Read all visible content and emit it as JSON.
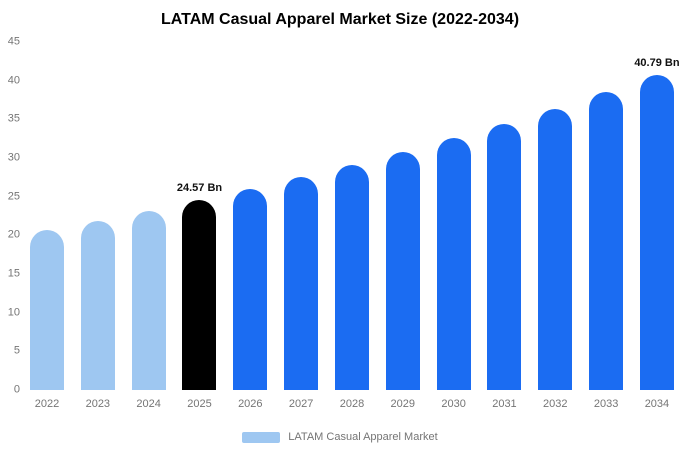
{
  "title": "LATAM Casual Apparel Market Size (2022-2034)",
  "legend": {
    "label": "LATAM Casual Apparel Market",
    "swatch_color": "#9ec7f1"
  },
  "colors": {
    "historical_bar": "#9ec7f1",
    "highlight_bar": "#000000",
    "forecast_bar": "#1b6cf2",
    "axis_text": "#757575",
    "title_text": "#000000",
    "value_label_text": "#111111",
    "background": "#ffffff"
  },
  "chart_data": {
    "type": "bar",
    "title": "LATAM Casual Apparel Market Size (2022-2034)",
    "categories": [
      "2022",
      "2023",
      "2024",
      "2025",
      "2026",
      "2027",
      "2028",
      "2029",
      "2030",
      "2031",
      "2032",
      "2033",
      "2034"
    ],
    "values": [
      20.7,
      21.9,
      23.2,
      24.57,
      26.0,
      27.5,
      29.1,
      30.8,
      32.6,
      34.4,
      36.4,
      38.5,
      40.79
    ],
    "unit": "Bn",
    "bar_colors": [
      "#9ec7f1",
      "#9ec7f1",
      "#9ec7f1",
      "#000000",
      "#1b6cf2",
      "#1b6cf2",
      "#1b6cf2",
      "#1b6cf2",
      "#1b6cf2",
      "#1b6cf2",
      "#1b6cf2",
      "#1b6cf2",
      "#1b6cf2"
    ],
    "data_labels": [
      "",
      "",
      "",
      "24.57 Bn",
      "",
      "",
      "",
      "",
      "",
      "",
      "",
      "",
      "40.79 Bn"
    ],
    "xlabel": "",
    "ylabel": "",
    "ylim": [
      0,
      45
    ],
    "yticks": [
      0,
      5,
      10,
      15,
      20,
      25,
      30,
      35,
      40,
      45
    ],
    "grid": false,
    "legend_position": "bottom",
    "legend_entries": [
      "LATAM Casual Apparel Market"
    ]
  }
}
